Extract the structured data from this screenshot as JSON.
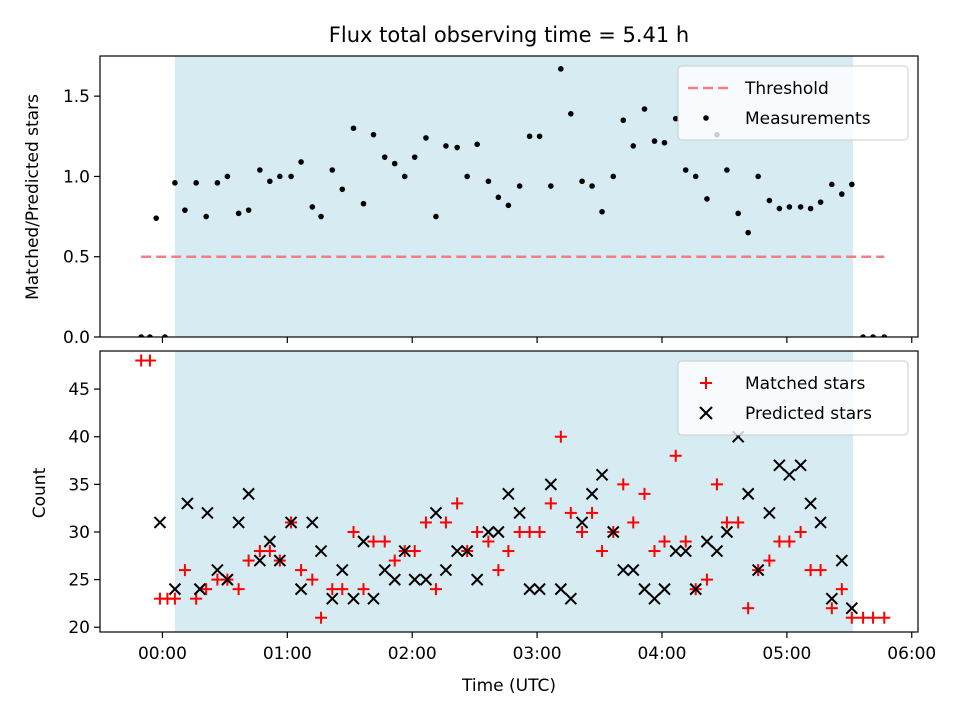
{
  "chart_data": [
    {
      "type": "scatter",
      "title": "Flux total observing time = 5.41 h",
      "xlabel": "",
      "ylabel": "Matched/Predicted stars",
      "xlim": [
        -0.5,
        6.05
      ],
      "ylim": [
        0,
        1.75
      ],
      "y_ticks": [
        0.0,
        0.5,
        1.0,
        1.5
      ],
      "y_tick_labels": [
        "0.0",
        "0.5",
        "1.0",
        "1.5"
      ],
      "shaded_span": [
        0.1,
        5.53
      ],
      "shaded_color": "#add8e6",
      "legend_position": "top-right",
      "threshold": {
        "name": "Threshold",
        "y": 0.5,
        "x_range": [
          -0.17,
          5.78
        ],
        "color": "#f08080",
        "style": "dashed"
      },
      "series": [
        {
          "name": "Measurements",
          "marker": "dot",
          "color": "#000000",
          "x": [
            -0.17,
            -0.1,
            -0.05,
            0.02,
            0.1,
            0.18,
            0.27,
            0.35,
            0.44,
            0.52,
            0.61,
            0.69,
            0.78,
            0.86,
            0.94,
            1.03,
            1.11,
            1.2,
            1.27,
            1.36,
            1.44,
            1.53,
            1.61,
            1.69,
            1.78,
            1.86,
            1.94,
            2.02,
            2.11,
            2.19,
            2.27,
            2.36,
            2.44,
            2.52,
            2.61,
            2.69,
            2.77,
            2.86,
            2.94,
            3.02,
            3.11,
            3.19,
            3.27,
            3.36,
            3.44,
            3.52,
            3.61,
            3.69,
            3.77,
            3.86,
            3.94,
            4.02,
            4.11,
            4.19,
            4.27,
            4.36,
            4.44,
            4.52,
            4.61,
            4.69,
            4.77,
            4.86,
            4.94,
            5.02,
            5.11,
            5.19,
            5.27,
            5.36,
            5.44,
            5.52,
            5.61,
            5.69,
            5.78
          ],
          "y": [
            0,
            0,
            0.74,
            0,
            0.96,
            0.79,
            0.96,
            0.75,
            0.96,
            1.0,
            0.77,
            0.79,
            1.04,
            0.97,
            1.0,
            1.0,
            1.09,
            0.81,
            0.75,
            1.04,
            0.92,
            1.3,
            0.83,
            1.26,
            1.12,
            1.08,
            1.0,
            1.12,
            1.24,
            0.75,
            1.19,
            1.18,
            1.0,
            1.2,
            0.97,
            0.87,
            0.82,
            0.94,
            1.25,
            1.25,
            0.94,
            1.67,
            1.39,
            0.97,
            0.94,
            0.78,
            1.0,
            1.35,
            1.19,
            1.42,
            1.22,
            1.21,
            1.36,
            1.04,
            1.0,
            0.86,
            1.26,
            1.04,
            0.77,
            0.65,
            1.0,
            0.85,
            0.8,
            0.81,
            0.81,
            0.8,
            0.84,
            0.95,
            0.89,
            0.95,
            0,
            0,
            0
          ]
        }
      ]
    },
    {
      "type": "scatter",
      "title": "",
      "xlabel": "Time (UTC)",
      "ylabel": "Count",
      "xlim": [
        -0.5,
        6.05
      ],
      "ylim": [
        19.5,
        49
      ],
      "x_ticks": [
        0,
        1,
        2,
        3,
        4,
        5,
        6
      ],
      "x_tick_labels": [
        "00:00",
        "01:00",
        "02:00",
        "03:00",
        "04:00",
        "05:00",
        "06:00"
      ],
      "y_ticks": [
        20,
        25,
        30,
        35,
        40,
        45
      ],
      "y_tick_labels": [
        "20",
        "25",
        "30",
        "35",
        "40",
        "45"
      ],
      "shaded_span": [
        0.1,
        5.53
      ],
      "shaded_color": "#add8e6",
      "legend_position": "top-right",
      "series": [
        {
          "name": "Matched stars",
          "marker": "plus",
          "color": "#ff0000",
          "x": [
            -0.17,
            -0.1,
            -0.02,
            0.04,
            0.1,
            0.18,
            0.27,
            0.35,
            0.44,
            0.52,
            0.61,
            0.69,
            0.78,
            0.86,
            0.94,
            1.03,
            1.11,
            1.2,
            1.27,
            1.36,
            1.44,
            1.53,
            1.61,
            1.69,
            1.78,
            1.86,
            1.94,
            2.02,
            2.11,
            2.19,
            2.27,
            2.36,
            2.44,
            2.52,
            2.61,
            2.69,
            2.77,
            2.86,
            2.94,
            3.02,
            3.11,
            3.19,
            3.27,
            3.36,
            3.44,
            3.52,
            3.61,
            3.69,
            3.77,
            3.86,
            3.94,
            4.02,
            4.11,
            4.19,
            4.27,
            4.36,
            4.44,
            4.52,
            4.61,
            4.69,
            4.77,
            4.86,
            4.94,
            5.02,
            5.11,
            5.19,
            5.27,
            5.36,
            5.44,
            5.52,
            5.61,
            5.69,
            5.78
          ],
          "y": [
            48,
            48,
            23,
            23,
            23,
            26,
            23,
            24,
            25,
            25,
            24,
            27,
            28,
            28,
            27,
            31,
            26,
            25,
            21,
            24,
            24,
            30,
            24,
            29,
            29,
            27,
            28,
            28,
            31,
            24,
            31,
            33,
            28,
            30,
            29,
            26,
            28,
            30,
            30,
            30,
            33,
            40,
            32,
            30,
            32,
            28,
            30,
            35,
            31,
            34,
            28,
            29,
            38,
            29,
            24,
            25,
            35,
            31,
            31,
            22,
            26,
            27,
            29,
            29,
            30,
            26,
            26,
            22,
            24,
            21,
            21,
            21,
            21
          ]
        },
        {
          "name": "Predicted stars",
          "marker": "x",
          "color": "#000000",
          "x": [
            -0.02,
            0.1,
            0.2,
            0.3,
            0.36,
            0.44,
            0.52,
            0.61,
            0.69,
            0.78,
            0.86,
            0.94,
            1.03,
            1.11,
            1.2,
            1.27,
            1.36,
            1.44,
            1.53,
            1.61,
            1.69,
            1.78,
            1.86,
            1.94,
            2.02,
            2.11,
            2.19,
            2.27,
            2.36,
            2.44,
            2.52,
            2.61,
            2.69,
            2.77,
            2.86,
            2.94,
            3.02,
            3.11,
            3.19,
            3.27,
            3.36,
            3.44,
            3.52,
            3.61,
            3.69,
            3.77,
            3.86,
            3.94,
            4.02,
            4.11,
            4.19,
            4.27,
            4.36,
            4.44,
            4.52,
            4.61,
            4.69,
            4.77,
            4.86,
            4.94,
            5.02,
            5.11,
            5.19,
            5.27,
            5.36,
            5.44,
            5.52
          ],
          "y": [
            31,
            24,
            33,
            24,
            32,
            26,
            25,
            31,
            34,
            27,
            29,
            27,
            31,
            24,
            31,
            28,
            23,
            26,
            23,
            29,
            23,
            26,
            25,
            28,
            25,
            25,
            32,
            26,
            28,
            28,
            25,
            30,
            30,
            34,
            32,
            24,
            24,
            35,
            24,
            23,
            31,
            34,
            36,
            30,
            26,
            26,
            24,
            23,
            24,
            28,
            28,
            24,
            29,
            28,
            30,
            40,
            34,
            26,
            32,
            37,
            36,
            37,
            33,
            31,
            23,
            27,
            22
          ]
        }
      ]
    }
  ]
}
